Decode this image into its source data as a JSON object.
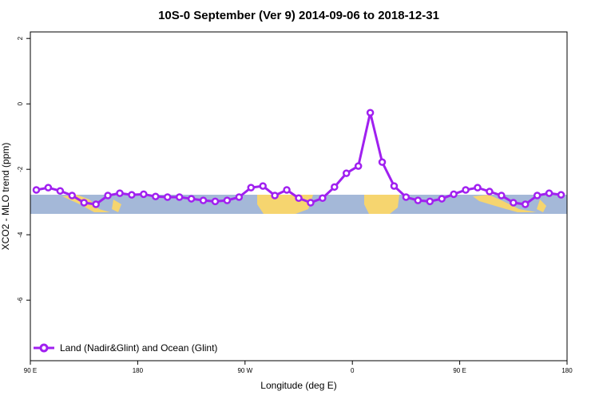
{
  "chart_data": {
    "type": "line",
    "title": "10S-0 September (Ver 9)   2014-09-06 to 2018-12-31",
    "x_label": "Longitude (deg E)",
    "y_label": "XCO2 - MLO trend (ppm)",
    "x": [
      95,
      105,
      115,
      125,
      135,
      145,
      155,
      165,
      175,
      185,
      195,
      205,
      215,
      225,
      235,
      245,
      255,
      265,
      275,
      285,
      295,
      305,
      315,
      325,
      335,
      345,
      355,
      365,
      375,
      385,
      395,
      405,
      415,
      425,
      435,
      445,
      455,
      465,
      475,
      485,
      495,
      505,
      515,
      525,
      535
    ],
    "series": [
      {
        "name": "Land (Nadir&Glint) and Ocean (Glint)",
        "color": "#a020f0",
        "values": [
          -2.63,
          -2.56,
          -2.66,
          -2.8,
          -3.02,
          -3.07,
          -2.8,
          -2.73,
          -2.78,
          -2.76,
          -2.83,
          -2.85,
          -2.85,
          -2.9,
          -2.95,
          -2.98,
          -2.95,
          -2.85,
          -2.56,
          -2.51,
          -2.8,
          -2.63,
          -2.88,
          -3.02,
          -2.88,
          -2.54,
          -2.12,
          -1.9,
          -0.27,
          -1.78,
          -2.51,
          -2.85,
          -2.95,
          -2.98,
          -2.9,
          -2.76,
          -2.63,
          -2.56,
          -2.68,
          -2.8,
          -3.02,
          -3.07,
          -2.8,
          -2.73,
          -2.78
        ]
      }
    ],
    "xlim": [
      90,
      540
    ],
    "xticks": [
      {
        "value": 90,
        "label": "90 E"
      },
      180,
      {
        "value": 270,
        "label": "90 W"
      },
      {
        "value": 360,
        "label": "0"
      },
      {
        "value": 450,
        "label": "90 E"
      },
      {
        "value": 540,
        "label": "180"
      }
    ],
    "ylim": [
      -7.85,
      2.2
    ],
    "yticks": [
      2,
      0,
      -2,
      -4,
      -6
    ],
    "legend": "bottom-left"
  }
}
